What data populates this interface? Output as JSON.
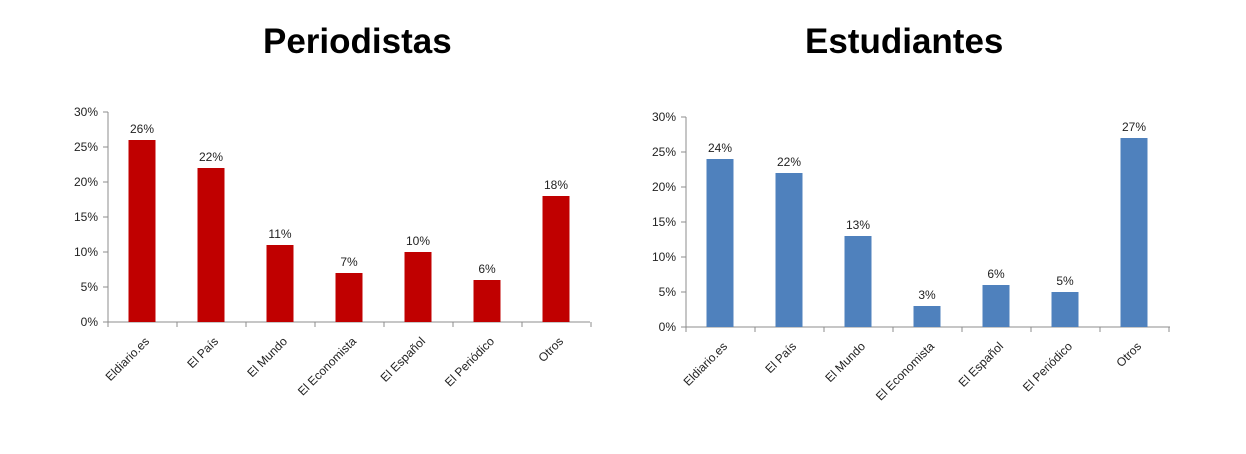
{
  "chart_data": [
    {
      "type": "bar",
      "title": "Periodistas",
      "categories": [
        "Eldiario.es",
        "El País",
        "El Mundo",
        "El Economista",
        "El Español",
        "El Periódico",
        "Otros"
      ],
      "values": [
        26,
        22,
        11,
        7,
        10,
        6,
        18
      ],
      "data_labels": [
        "26%",
        "22%",
        "11%",
        "7%",
        "10%",
        "6%",
        "18%"
      ],
      "y_ticks": [
        "0%",
        "5%",
        "10%",
        "15%",
        "20%",
        "25%",
        "30%"
      ],
      "ylim": [
        0,
        30
      ],
      "grid": false,
      "color": "#c00000"
    },
    {
      "type": "bar",
      "title": "Estudiantes",
      "categories": [
        "Eldiario.es",
        "El País",
        "El Mundo",
        "El Economista",
        "El Español",
        "El Periódico",
        "Otros"
      ],
      "values": [
        24,
        22,
        13,
        3,
        6,
        5,
        27
      ],
      "data_labels": [
        "24%",
        "22%",
        "13%",
        "3%",
        "6%",
        "5%",
        "27%"
      ],
      "y_ticks": [
        "0%",
        "5%",
        "10%",
        "15%",
        "20%",
        "25%",
        "30%"
      ],
      "ylim": [
        0,
        30
      ],
      "grid": false,
      "color": "#4f81bd"
    }
  ]
}
